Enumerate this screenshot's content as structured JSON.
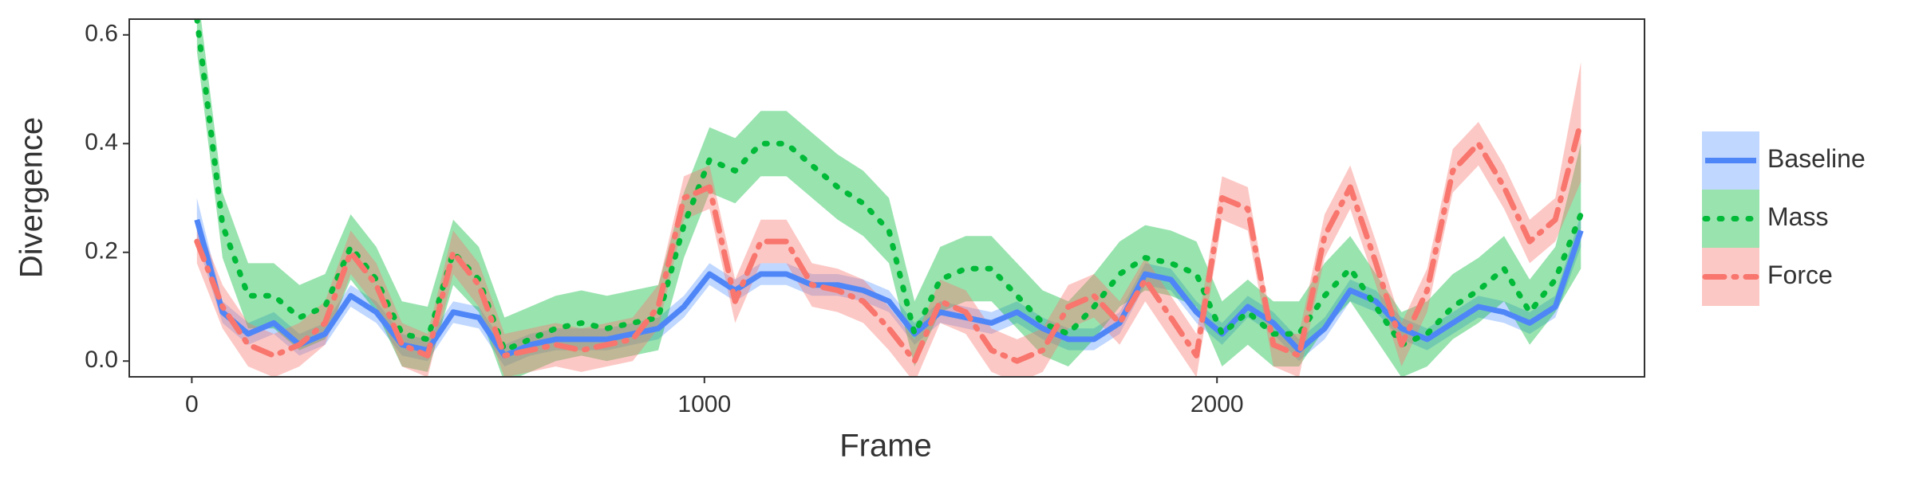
{
  "chart_data": {
    "type": "line",
    "x_label": "Frame",
    "y_label": "Divergence",
    "xlim": [
      -122,
      2834
    ],
    "ylim": [
      -0.029,
      0.629
    ],
    "xticks": [
      0,
      1000,
      2000
    ],
    "yticks": [
      {
        "value": 0,
        "label": "0.0"
      },
      0.2,
      0.4,
      0.6
    ],
    "legend": "right",
    "x": [
      10,
      60,
      110,
      160,
      210,
      260,
      310,
      360,
      410,
      460,
      510,
      560,
      610,
      660,
      710,
      760,
      810,
      860,
      910,
      960,
      1010,
      1060,
      1110,
      1160,
      1210,
      1260,
      1310,
      1360,
      1410,
      1460,
      1510,
      1560,
      1610,
      1660,
      1710,
      1760,
      1810,
      1860,
      1910,
      1960,
      2010,
      2060,
      2110,
      2160,
      2210,
      2260,
      2310,
      2360,
      2410,
      2460,
      2510,
      2560,
      2610,
      2660,
      2710
    ],
    "series": [
      {
        "name": "Baseline",
        "color": "#4f86f7",
        "band_color": "#619cff",
        "linestyle": "solid",
        "values": [
          0.26,
          0.09,
          0.05,
          0.07,
          0.03,
          0.05,
          0.12,
          0.09,
          0.03,
          0.02,
          0.09,
          0.08,
          0.01,
          0.03,
          0.04,
          0.04,
          0.04,
          0.05,
          0.06,
          0.1,
          0.16,
          0.13,
          0.16,
          0.16,
          0.14,
          0.14,
          0.13,
          0.11,
          0.05,
          0.09,
          0.08,
          0.07,
          0.09,
          0.06,
          0.04,
          0.04,
          0.07,
          0.16,
          0.15,
          0.09,
          0.05,
          0.1,
          0.07,
          0.02,
          0.06,
          0.13,
          0.11,
          0.06,
          0.04,
          0.07,
          0.1,
          0.09,
          0.07,
          0.1,
          0.24
        ],
        "lower": [
          0.22,
          0.07,
          0.03,
          0.05,
          0.01,
          0.03,
          0.1,
          0.07,
          0.01,
          0,
          0.07,
          0.06,
          -0.01,
          0.01,
          0.02,
          0.02,
          0.02,
          0.03,
          0.04,
          0.08,
          0.14,
          0.11,
          0.14,
          0.14,
          0.12,
          0.12,
          0.11,
          0.09,
          0.03,
          0.07,
          0.06,
          0.05,
          0.07,
          0.04,
          0.02,
          0.02,
          0.05,
          0.14,
          0.13,
          0.07,
          0.03,
          0.08,
          0.05,
          0,
          0.04,
          0.11,
          0.09,
          0.04,
          0.02,
          0.05,
          0.08,
          0.07,
          0.05,
          0.08,
          0.21
        ],
        "upper": [
          0.3,
          0.11,
          0.07,
          0.09,
          0.05,
          0.07,
          0.14,
          0.11,
          0.05,
          0.04,
          0.11,
          0.1,
          0.03,
          0.05,
          0.06,
          0.06,
          0.06,
          0.07,
          0.08,
          0.12,
          0.18,
          0.15,
          0.18,
          0.18,
          0.16,
          0.16,
          0.15,
          0.13,
          0.07,
          0.11,
          0.1,
          0.09,
          0.11,
          0.08,
          0.06,
          0.06,
          0.09,
          0.18,
          0.17,
          0.11,
          0.07,
          0.12,
          0.09,
          0.04,
          0.08,
          0.15,
          0.13,
          0.08,
          0.06,
          0.09,
          0.12,
          0.11,
          0.09,
          0.12,
          0.27
        ]
      },
      {
        "name": "Mass",
        "color": "#00ba38",
        "band_color": "#00ba38",
        "linestyle": "dotted",
        "values": [
          0.63,
          0.25,
          0.12,
          0.12,
          0.08,
          0.1,
          0.21,
          0.15,
          0.05,
          0.04,
          0.2,
          0.15,
          0.02,
          0.04,
          0.06,
          0.07,
          0.06,
          0.07,
          0.08,
          0.25,
          0.37,
          0.35,
          0.4,
          0.4,
          0.36,
          0.32,
          0.29,
          0.24,
          0.05,
          0.15,
          0.17,
          0.17,
          0.12,
          0.07,
          0.05,
          0.1,
          0.16,
          0.19,
          0.18,
          0.16,
          0.05,
          0.09,
          0.05,
          0.05,
          0.12,
          0.17,
          0.1,
          0.03,
          0.05,
          0.1,
          0.13,
          0.17,
          0.09,
          0.15,
          0.27
        ],
        "lower": [
          0.57,
          0.19,
          0.06,
          0.06,
          0.02,
          0.04,
          0.15,
          0.09,
          -0.01,
          -0.02,
          0.14,
          0.09,
          -0.04,
          -0.02,
          0,
          0.01,
          0,
          0.01,
          0.02,
          0.19,
          0.31,
          0.29,
          0.34,
          0.34,
          0.3,
          0.26,
          0.23,
          0.18,
          -0.01,
          0.09,
          0.11,
          0.11,
          0.06,
          0.01,
          -0.01,
          0.04,
          0.1,
          0.13,
          0.12,
          0.1,
          -0.01,
          0.03,
          -0.01,
          -0.01,
          0.06,
          0.11,
          0.04,
          -0.03,
          -0.01,
          0.04,
          0.07,
          0.11,
          0.03,
          0.09,
          0.17
        ],
        "upper": [
          0.69,
          0.31,
          0.18,
          0.18,
          0.14,
          0.16,
          0.27,
          0.21,
          0.11,
          0.1,
          0.26,
          0.21,
          0.08,
          0.1,
          0.12,
          0.13,
          0.12,
          0.13,
          0.14,
          0.31,
          0.43,
          0.41,
          0.46,
          0.46,
          0.42,
          0.38,
          0.35,
          0.3,
          0.11,
          0.21,
          0.23,
          0.23,
          0.18,
          0.13,
          0.11,
          0.16,
          0.22,
          0.25,
          0.24,
          0.22,
          0.11,
          0.15,
          0.11,
          0.11,
          0.18,
          0.23,
          0.16,
          0.09,
          0.11,
          0.16,
          0.19,
          0.23,
          0.15,
          0.21,
          0.4
        ]
      },
      {
        "name": "Force",
        "color": "#f8766d",
        "band_color": "#f8766d",
        "linestyle": "dashdot",
        "values": [
          0.22,
          0.1,
          0.03,
          0.01,
          0.03,
          0.07,
          0.2,
          0.14,
          0.03,
          0.01,
          0.2,
          0.14,
          0.01,
          0.02,
          0.03,
          0.02,
          0.03,
          0.04,
          0.1,
          0.3,
          0.32,
          0.11,
          0.22,
          0.22,
          0.14,
          0.13,
          0.11,
          0.06,
          0,
          0.11,
          0.09,
          0.02,
          0,
          0.02,
          0.1,
          0.12,
          0.07,
          0.15,
          0.08,
          0.01,
          0.3,
          0.28,
          0.03,
          0.01,
          0.23,
          0.32,
          0.18,
          0.03,
          0.13,
          0.35,
          0.4,
          0.32,
          0.22,
          0.26,
          0.44
        ],
        "lower": [
          0.18,
          0.06,
          -0.01,
          -0.03,
          -0.01,
          0.03,
          0.16,
          0.1,
          -0.01,
          -0.03,
          0.16,
          0.1,
          -0.03,
          -0.02,
          -0.01,
          -0.02,
          -0.01,
          0,
          0.06,
          0.26,
          0.28,
          0.07,
          0.18,
          0.18,
          0.1,
          0.09,
          0.07,
          0.02,
          -0.04,
          0.07,
          0.05,
          -0.02,
          -0.04,
          -0.02,
          0.06,
          0.08,
          0.03,
          0.11,
          0.04,
          -0.03,
          0.26,
          0.24,
          -0.01,
          -0.03,
          0.19,
          0.28,
          0.14,
          -0.01,
          0.09,
          0.31,
          0.36,
          0.28,
          0.18,
          0.22,
          0.33
        ],
        "upper": [
          0.26,
          0.14,
          0.07,
          0.05,
          0.07,
          0.11,
          0.24,
          0.18,
          0.07,
          0.05,
          0.24,
          0.18,
          0.05,
          0.06,
          0.07,
          0.06,
          0.07,
          0.08,
          0.14,
          0.34,
          0.36,
          0.15,
          0.26,
          0.26,
          0.18,
          0.17,
          0.15,
          0.1,
          0.04,
          0.15,
          0.13,
          0.06,
          0.04,
          0.06,
          0.14,
          0.16,
          0.11,
          0.19,
          0.12,
          0.05,
          0.34,
          0.32,
          0.05,
          0.05,
          0.27,
          0.36,
          0.22,
          0.07,
          0.17,
          0.39,
          0.44,
          0.36,
          0.26,
          0.3,
          0.55
        ]
      }
    ]
  }
}
